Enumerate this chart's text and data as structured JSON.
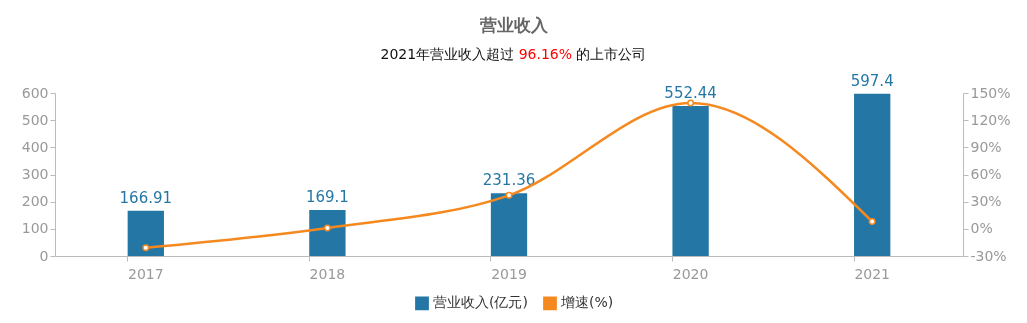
{
  "chart_data": {
    "type": "bar",
    "title": "营业收入",
    "subtitle": "2021年营业收入超过 96.16% 的上市公司",
    "categories": [
      "2017",
      "2018",
      "2019",
      "2020",
      "2021"
    ],
    "series": [
      {
        "name": "营业收入(亿元)",
        "color": "#2477a4",
        "values": [
          166.91,
          169.1,
          231.36,
          552.44,
          597.4
        ],
        "value_labels": [
          "166.91",
          "169.1",
          "231.36",
          "552.44",
          "597.4"
        ]
      },
      {
        "name": "增速(%)",
        "type": "line",
        "axis": "y2",
        "color": "#f5891f",
        "marker": "circle",
        "line_style": "solid",
        "values": [
          -21,
          1,
          37,
          139,
          8
        ]
      }
    ],
    "ylim": [
      0,
      600
    ],
    "yticks": [
      0,
      100,
      200,
      300,
      400,
      500,
      600
    ],
    "y2lim": [
      -30,
      150
    ],
    "y2ticks": [
      {
        "value": -30,
        "label": "-30%"
      },
      {
        "value": 0,
        "label": "0%"
      },
      {
        "value": 30,
        "label": "30%"
      },
      {
        "value": 60,
        "label": "60%"
      },
      {
        "value": 90,
        "label": "90%"
      },
      {
        "value": 120,
        "label": "120%"
      },
      {
        "value": 150,
        "label": "150%"
      }
    ],
    "grid": false,
    "legend": "bottom"
  }
}
